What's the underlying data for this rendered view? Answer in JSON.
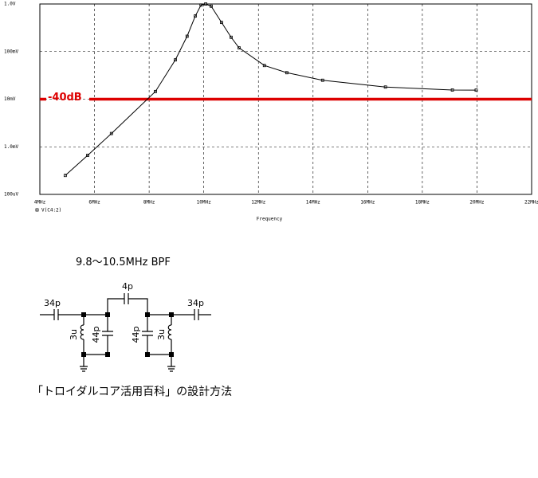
{
  "chart_data": {
    "type": "line",
    "x_label": "Frequency",
    "x": [
      4.93,
      5.75,
      6.62,
      8.23,
      8.96,
      9.39,
      9.69,
      9.9,
      10.07,
      10.27,
      10.65,
      11.0,
      11.29,
      12.22,
      13.04,
      14.35,
      16.65,
      19.1,
      19.97
    ],
    "series": [
      {
        "name": "V(C4:2)",
        "color": "#000000",
        "values": [
          0.00025,
          0.00066,
          0.0019,
          0.0145,
          0.067,
          0.21,
          0.56,
          0.95,
          1.0,
          0.9,
          0.41,
          0.2,
          0.12,
          0.051,
          0.036,
          0.025,
          0.018,
          0.0156,
          0.0155
        ]
      }
    ],
    "log_y": true,
    "grid": true,
    "xlim": [
      4,
      22
    ],
    "xticks": [
      {
        "value": 4,
        "label": "4MHz"
      },
      {
        "value": 6,
        "label": "6MHz"
      },
      {
        "value": 8,
        "label": "8MHz"
      },
      {
        "value": 10,
        "label": "10MHz"
      },
      {
        "value": 12,
        "label": "12MHz"
      },
      {
        "value": 14,
        "label": "14MHz"
      },
      {
        "value": 16,
        "label": "16MHz"
      },
      {
        "value": 18,
        "label": "18MHz"
      },
      {
        "value": 20,
        "label": "20MHz"
      },
      {
        "value": 22,
        "label": "22MHz"
      }
    ],
    "ylim": [
      0.0001,
      1
    ],
    "yticks": [
      {
        "value": 0.0001,
        "label": "100uV"
      },
      {
        "value": 0.001,
        "label": "1.0mV"
      },
      {
        "value": 0.01,
        "label": "10mV"
      },
      {
        "value": 0.1,
        "label": "100mV"
      },
      {
        "value": 1,
        "label": "1.0V"
      }
    ],
    "annotation": {
      "text": "-40dB",
      "value": 0.01,
      "color": "#dd0000"
    }
  },
  "schematic": {
    "title": "9.8～10.5MHz BPF",
    "labels": [
      "34p",
      "4p",
      "34p",
      "3u",
      "44p",
      "44p",
      "3u"
    ]
  },
  "caption": "「トロイダルコア活用百科」の設計方法"
}
